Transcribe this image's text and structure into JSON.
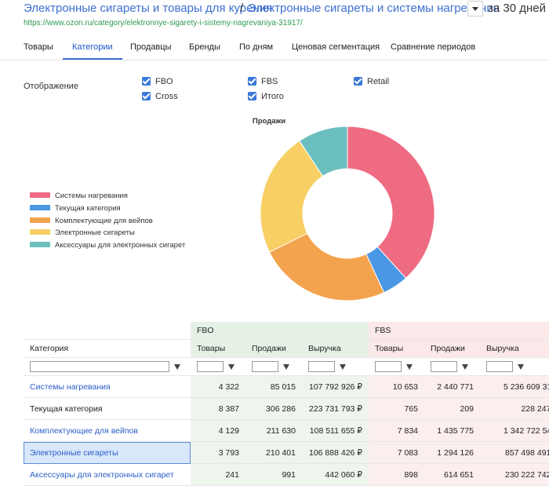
{
  "header": {
    "breadcrumb": [
      "Электронные сигареты и товары для курения",
      "Электронные сигареты и системы нагревания"
    ],
    "separator": "/",
    "period": "за 30 дней",
    "url": "https://www.ozon.ru/category/elektronnye-sigarety-i-sistemy-nagrevaniya-31917/"
  },
  "tabs": {
    "items": [
      "Товары",
      "Категории",
      "Продавцы",
      "Бренды",
      "По дням",
      "Ценовая сегментация",
      "Сравнение периодов"
    ],
    "active": 1
  },
  "display": {
    "label": "Отображение",
    "options": [
      "FBO",
      "FBS",
      "Retail",
      "Cross",
      "Итого"
    ]
  },
  "chart_data": {
    "type": "pie",
    "title": "Продажи",
    "donut": true,
    "categories": [
      "Системы нагревания",
      "Текущая категория",
      "Комплектующие для вейпов",
      "Электронные сигареты",
      "Аксессуары для электронных сигарет"
    ],
    "values": [
      38.3,
      4.8,
      24.6,
      23.0,
      9.3
    ],
    "colors": [
      "#ef6b82",
      "#4a98e3",
      "#f3a34e",
      "#f7cf65",
      "#6bbfbf"
    ]
  },
  "table": {
    "groups": [
      "FBO",
      "FBS"
    ],
    "columns": [
      "Категория",
      "Товары",
      "Продажи",
      "Выручка",
      "Товары",
      "Продажи",
      "Выручка"
    ],
    "rows": [
      [
        "Системы нагревания",
        "4 322",
        "85 015",
        "107 792 926 ₽",
        "10 653",
        "2 440 771",
        "5 236 609 31..."
      ],
      [
        "Текущая категория",
        "8 387",
        "306 286",
        "223 731 793 ₽",
        "765",
        "209",
        "228 247 ₽"
      ],
      [
        "Комплектующие для вейпов",
        "4 129",
        "211 630",
        "108 511 655 ₽",
        "7 834",
        "1 435 775",
        "1 342 722 54..."
      ],
      [
        "Электронные сигареты",
        "3 793",
        "210 401",
        "106 888 426 ₽",
        "7 083",
        "1 294 126",
        "857 498 491 ₽"
      ],
      [
        "Аксессуары для электронных сигарет",
        "241",
        "991",
        "442 060 ₽",
        "898",
        "614 651",
        "230 222 742 ₽"
      ]
    ],
    "current_row": 1,
    "selected_row": 3
  }
}
